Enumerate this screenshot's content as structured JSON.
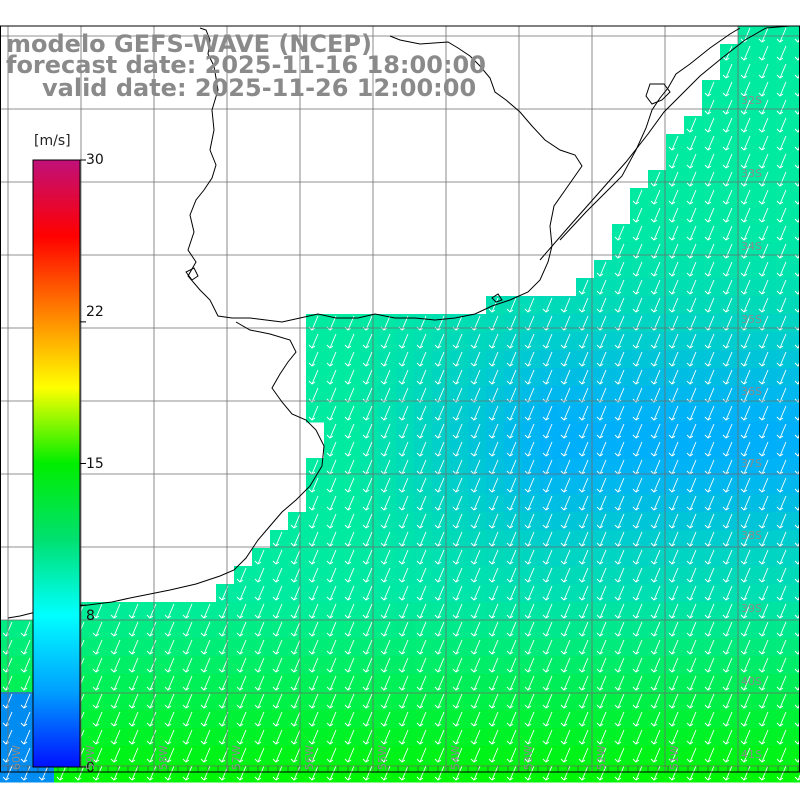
{
  "title": {
    "line1": "modelo GEFS-WAVE (NCEP)",
    "line2": "forecast date: 2025-11-16 18:00:00",
    "line3": "valid date: 2025-11-26 12:00:00"
  },
  "colorbar": {
    "unit": "[m/s]",
    "ticks": [
      {
        "label": "30",
        "value": 30
      },
      {
        "label": "22",
        "value": 22
      },
      {
        "label": "15",
        "value": 15
      },
      {
        "label": "8",
        "value": 8
      },
      {
        "label": "0",
        "value": 0
      }
    ],
    "colors": [
      "#0010ff",
      "#00a0ff",
      "#00ffff",
      "#00e070",
      "#00ee00",
      "#ffff00",
      "#ff8000",
      "#ff0000",
      "#c0107a"
    ]
  },
  "lat_labels": [
    "32S",
    "33S",
    "34S",
    "35S",
    "36S",
    "37S",
    "38S",
    "39S",
    "40S",
    "41S"
  ],
  "lon_labels": [
    "60W",
    "59W",
    "58W",
    "57W",
    "56W",
    "55W",
    "54W",
    "53W",
    "52W",
    "51W"
  ],
  "colors": {
    "land": "#ffffff",
    "grid": "#6e6e6e",
    "coast": "#000000",
    "arrow": "#ffffff",
    "title_text": "#8a8a8a"
  },
  "wind_direction": "from north-northeast (arrows pointing south-southwest)"
}
